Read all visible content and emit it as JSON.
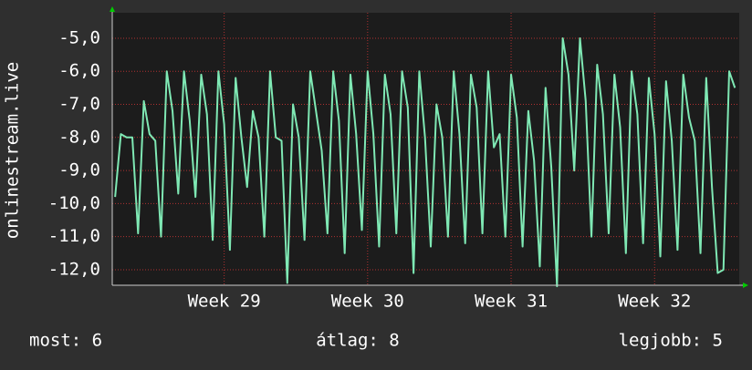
{
  "chart_data": {
    "type": "line",
    "y_label": "onlinestream.live",
    "x": [
      28.24,
      28.28,
      28.32,
      28.36,
      28.4,
      28.44,
      28.48,
      28.52,
      28.56,
      28.6,
      28.64,
      28.68,
      28.72,
      28.76,
      28.8,
      28.84,
      28.88,
      28.92,
      28.96,
      29.0,
      29.04,
      29.08,
      29.12,
      29.16,
      29.2,
      29.24,
      29.28,
      29.32,
      29.36,
      29.4,
      29.44,
      29.48,
      29.52,
      29.56,
      29.6,
      29.64,
      29.68,
      29.72,
      29.76,
      29.8,
      29.84,
      29.88,
      29.92,
      29.96,
      30.0,
      30.04,
      30.08,
      30.12,
      30.16,
      30.2,
      30.24,
      30.28,
      30.32,
      30.36,
      30.4,
      30.44,
      30.48,
      30.52,
      30.56,
      30.6,
      30.64,
      30.68,
      30.72,
      30.76,
      30.8,
      30.84,
      30.88,
      30.92,
      30.96,
      31.0,
      31.04,
      31.08,
      31.12,
      31.16,
      31.2,
      31.24,
      31.28,
      31.32,
      31.36,
      31.4,
      31.44,
      31.48,
      31.52,
      31.56,
      31.6,
      31.64,
      31.68,
      31.72,
      31.76,
      31.8,
      31.84,
      31.88,
      31.92,
      31.96,
      32.0,
      32.04,
      32.08,
      32.12,
      32.16,
      32.2,
      32.24,
      32.28,
      32.32,
      32.36,
      32.4,
      32.44,
      32.48,
      32.52,
      32.56
    ],
    "series": [
      {
        "color": "#7fe8b4",
        "values": [
          -9.8,
          -7.9,
          -8.0,
          -8.0,
          -10.9,
          -6.9,
          -7.9,
          -8.1,
          -11.0,
          -6.0,
          -7.2,
          -9.7,
          -6.0,
          -7.5,
          -9.8,
          -6.1,
          -7.3,
          -11.1,
          -6.0,
          -7.6,
          -11.4,
          -6.2,
          -8.0,
          -9.5,
          -7.2,
          -8.0,
          -11.0,
          -6.0,
          -8.0,
          -8.1,
          -12.4,
          -7.0,
          -8.0,
          -11.1,
          -6.0,
          -7.2,
          -8.4,
          -10.9,
          -6.0,
          -7.5,
          -11.5,
          -6.1,
          -7.9,
          -10.8,
          -6.0,
          -7.9,
          -11.3,
          -6.1,
          -7.3,
          -10.9,
          -6.0,
          -7.1,
          -12.1,
          -6.0,
          -8.0,
          -11.3,
          -7.0,
          -8.0,
          -11.0,
          -6.0,
          -7.9,
          -11.2,
          -6.1,
          -7.1,
          -10.9,
          -6.0,
          -8.3,
          -7.9,
          -11.0,
          -6.1,
          -7.4,
          -11.3,
          -7.2,
          -8.7,
          -11.9,
          -6.5,
          -8.9,
          -12.5,
          -5.0,
          -6.1,
          -9.0,
          -5.0,
          -6.9,
          -11.0,
          -5.8,
          -7.3,
          -10.9,
          -6.1,
          -7.7,
          -11.5,
          -6.0,
          -7.3,
          -11.2,
          -6.2,
          -7.9,
          -11.6,
          -6.3,
          -8.1,
          -11.4,
          -6.1,
          -7.4,
          -8.1,
          -11.5,
          -6.2,
          -9.5,
          -12.1,
          -12.0,
          -6.0,
          -6.5
        ]
      }
    ],
    "xlim": [
      28.22,
      32.59
    ],
    "xticks": [
      {
        "value": 29,
        "label": "Week 29"
      },
      {
        "value": 30,
        "label": "Week 30"
      },
      {
        "value": 31,
        "label": "Week 31"
      },
      {
        "value": 32,
        "label": "Week 32"
      }
    ],
    "ylim": [
      -12.47,
      -4.23
    ],
    "yticks": [
      {
        "value": -12,
        "label": "-12,0"
      },
      {
        "value": -11,
        "label": "-11,0"
      },
      {
        "value": -10,
        "label": "-10,0"
      },
      {
        "value": -9,
        "label": "-9,0"
      },
      {
        "value": -8,
        "label": "-8,0"
      },
      {
        "value": -7,
        "label": "-7,0"
      },
      {
        "value": -6,
        "label": "-6,0"
      },
      {
        "value": -5,
        "label": "-5,0"
      }
    ],
    "grid": true,
    "footer": [
      "most: 6",
      "átlag: 8",
      "legjobb: 5"
    ]
  }
}
